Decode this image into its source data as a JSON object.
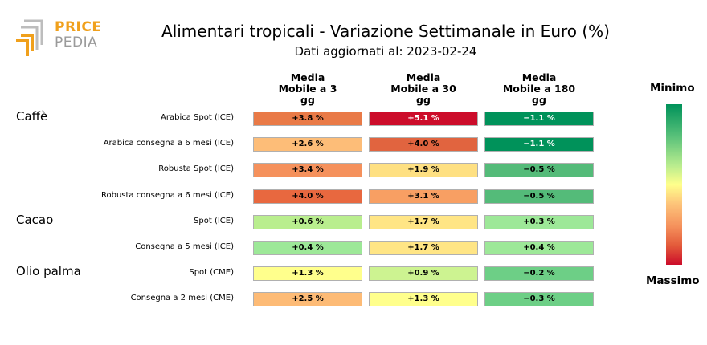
{
  "logo": {
    "word1": "PRICE",
    "word2": "PEDIA"
  },
  "chart_data": {
    "type": "heatmap",
    "title": "Alimentari tropicali - Variazione Settimanale in Euro (%)",
    "subtitle": "Dati aggiornati al: 2023-02-24",
    "columns": [
      {
        "lines": [
          "Media",
          "Mobile a 3",
          "gg"
        ]
      },
      {
        "lines": [
          "Media",
          "Mobile a 30",
          "gg"
        ]
      },
      {
        "lines": [
          "Media",
          "Mobile a 180",
          "gg"
        ]
      }
    ],
    "groups": [
      {
        "name": "Caffè",
        "rows": 4
      },
      {
        "name": "Cacao",
        "rows": 2
      },
      {
        "name": "Olio palma",
        "rows": 2
      }
    ],
    "rows": [
      {
        "label": "Arabica Spot (ICE)",
        "values": [
          3.8,
          5.1,
          -1.1
        ],
        "texts": [
          "+3.8 %",
          "+5.1 %",
          "−1.1 %"
        ]
      },
      {
        "label": "Arabica consegna a 6 mesi (ICE)",
        "values": [
          2.6,
          4.0,
          -1.1
        ],
        "texts": [
          "+2.6 %",
          "+4.0 %",
          "−1.1 %"
        ]
      },
      {
        "label": "Robusta Spot (ICE)",
        "values": [
          3.4,
          1.9,
          -0.5
        ],
        "texts": [
          "+3.4 %",
          "+1.9 %",
          "−0.5 %"
        ]
      },
      {
        "label": "Robusta consegna a 6 mesi (ICE)",
        "values": [
          4.0,
          3.1,
          -0.5
        ],
        "texts": [
          "+4.0 %",
          "+3.1 %",
          "−0.5 %"
        ]
      },
      {
        "label": "Spot (ICE)",
        "values": [
          0.6,
          1.7,
          0.3
        ],
        "texts": [
          "+0.6 %",
          "+1.7 %",
          "+0.3 %"
        ]
      },
      {
        "label": "Consegna a 5 mesi (ICE)",
        "values": [
          0.4,
          1.7,
          0.4
        ],
        "texts": [
          "+0.4 %",
          "+1.7 %",
          "+0.4 %"
        ]
      },
      {
        "label": "Spot (CME)",
        "values": [
          1.3,
          0.9,
          -0.2
        ],
        "texts": [
          "+1.3 %",
          "+0.9 %",
          "−0.2 %"
        ]
      },
      {
        "label": "Consegna a 2 mesi (CME)",
        "values": [
          2.5,
          1.3,
          -0.3
        ],
        "texts": [
          "+2.5 %",
          "+1.3 %",
          "−0.3 %"
        ]
      }
    ],
    "cell_colors": [
      [
        "#e97a47",
        "#cc0c2a",
        "#00925a"
      ],
      [
        "#fdbd78",
        "#e1643f",
        "#00925a"
      ],
      [
        "#f5915c",
        "#fee082",
        "#54bb79"
      ],
      [
        "#e8683f",
        "#f89f63",
        "#54bb79"
      ],
      [
        "#b9ee8e",
        "#ffe585",
        "#9de898"
      ],
      [
        "#9de898",
        "#ffe585",
        "#9de898"
      ],
      [
        "#ffff8c",
        "#cdf391",
        "#6dcf86"
      ],
      [
        "#fdbb76",
        "#ffff8c",
        "#6dcf86"
      ]
    ],
    "colorbar": {
      "top_label": "Minimo",
      "bottom_label": "Massimo"
    }
  }
}
